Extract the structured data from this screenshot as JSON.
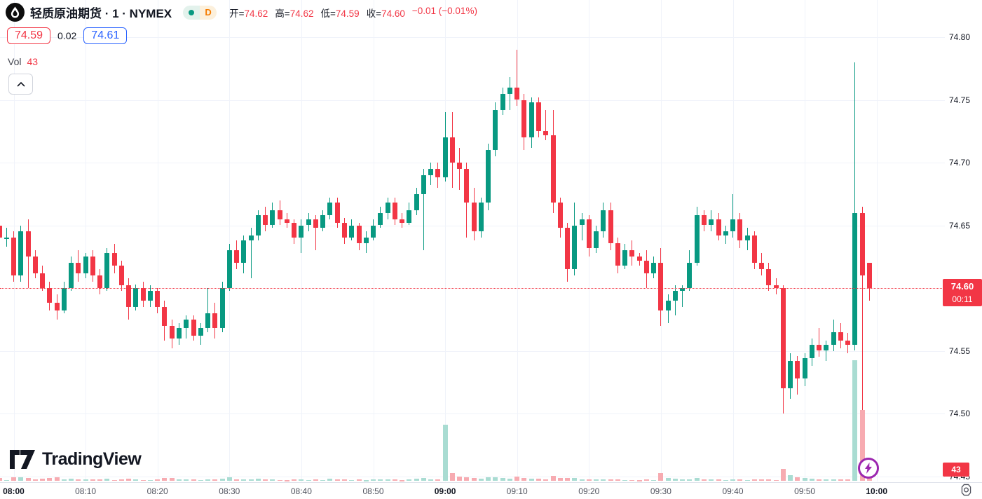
{
  "header": {
    "symbol_title": "轻质原油期货 · 1 · NYMEX",
    "interval_badge": "D",
    "ohlc": {
      "open_label": "开=",
      "open": "74.62",
      "high_label": "高=",
      "high": "74.62",
      "low_label": "低=",
      "low": "74.59",
      "close_label": "收=",
      "close": "74.60",
      "change": "−0.01 (−0.01%)"
    }
  },
  "quote_row": {
    "bid": "74.59",
    "spread": "0.02",
    "ask": "74.61"
  },
  "indicator_row": {
    "label": "Vol",
    "value": "43"
  },
  "watermark": {
    "brand": "TradingView"
  },
  "price_axis": {
    "labels": [
      "74.80",
      "74.75",
      "74.70",
      "74.65",
      "74.55",
      "74.50",
      "74.45"
    ],
    "last_price_tag": {
      "price": "74.60",
      "countdown": "00:11"
    },
    "volume_tag": "43"
  },
  "time_axis": {
    "labels": [
      {
        "text": "08:00",
        "emphasis": true
      },
      {
        "text": "08:10",
        "emphasis": false
      },
      {
        "text": "08:20",
        "emphasis": false
      },
      {
        "text": "08:30",
        "emphasis": false
      },
      {
        "text": "08:40",
        "emphasis": false
      },
      {
        "text": "08:50",
        "emphasis": false
      },
      {
        "text": "09:00",
        "emphasis": true
      },
      {
        "text": "09:10",
        "emphasis": false
      },
      {
        "text": "09:20",
        "emphasis": false
      },
      {
        "text": "09:30",
        "emphasis": false
      },
      {
        "text": "09:40",
        "emphasis": false
      },
      {
        "text": "09:50",
        "emphasis": false
      },
      {
        "text": "10:00",
        "emphasis": true
      }
    ]
  },
  "chart_data": {
    "type": "candlestick",
    "title": "轻质原油期货",
    "interval": "1",
    "exchange": "NYMEX",
    "ylim": [
      74.45,
      74.81
    ],
    "price_line": 74.6,
    "grid": true,
    "colors": {
      "up": "#089981",
      "down": "#f23645",
      "vol_up": "#a9dcd2",
      "vol_down": "#f7abb1",
      "grid": "#f0f3fa",
      "line": "#f23645"
    },
    "columns": [
      "time",
      "open",
      "high",
      "low",
      "close",
      "volume"
    ],
    "candles": [
      [
        "07:58",
        74.65,
        74.665,
        74.635,
        74.64,
        25
      ],
      [
        "07:59",
        74.64,
        74.648,
        74.633,
        74.64,
        10
      ],
      [
        "08:00",
        74.64,
        74.645,
        74.605,
        74.61,
        30
      ],
      [
        "08:01",
        74.61,
        74.65,
        74.605,
        74.645,
        28
      ],
      [
        "08:02",
        74.645,
        74.655,
        74.6,
        74.625,
        22
      ],
      [
        "08:03",
        74.625,
        74.63,
        74.608,
        74.612,
        15
      ],
      [
        "08:04",
        74.612,
        74.618,
        74.598,
        74.6,
        18
      ],
      [
        "08:05",
        74.6,
        74.605,
        74.582,
        74.588,
        24
      ],
      [
        "08:06",
        74.588,
        74.595,
        74.575,
        74.582,
        30
      ],
      [
        "08:07",
        74.582,
        74.605,
        74.58,
        74.6,
        16
      ],
      [
        "08:08",
        74.6,
        74.625,
        74.598,
        74.62,
        20
      ],
      [
        "08:09",
        74.62,
        74.63,
        74.605,
        74.612,
        12
      ],
      [
        "08:10",
        74.612,
        74.628,
        74.608,
        74.625,
        16
      ],
      [
        "08:11",
        74.625,
        74.63,
        74.605,
        74.61,
        14
      ],
      [
        "08:12",
        74.61,
        74.615,
        74.595,
        74.6,
        12
      ],
      [
        "08:13",
        74.6,
        74.632,
        74.598,
        74.628,
        18
      ],
      [
        "08:14",
        74.628,
        74.635,
        74.612,
        74.618,
        10
      ],
      [
        "08:15",
        74.618,
        74.622,
        74.598,
        74.602,
        14
      ],
      [
        "08:16",
        74.602,
        74.608,
        74.575,
        74.585,
        20
      ],
      [
        "08:17",
        74.585,
        74.603,
        74.582,
        74.6,
        12
      ],
      [
        "08:18",
        74.6,
        74.605,
        74.585,
        74.59,
        10
      ],
      [
        "08:19",
        74.59,
        74.602,
        74.585,
        74.598,
        9
      ],
      [
        "08:20",
        74.598,
        74.6,
        74.58,
        74.585,
        15
      ],
      [
        "08:21",
        74.585,
        74.59,
        74.558,
        74.57,
        22
      ],
      [
        "08:22",
        74.57,
        74.575,
        74.552,
        74.56,
        26
      ],
      [
        "08:23",
        74.56,
        74.572,
        74.555,
        74.568,
        14
      ],
      [
        "08:24",
        74.568,
        74.578,
        74.56,
        74.575,
        11
      ],
      [
        "08:25",
        74.575,
        74.578,
        74.558,
        74.562,
        12
      ],
      [
        "08:26",
        74.562,
        74.572,
        74.555,
        74.568,
        9
      ],
      [
        "08:27",
        74.568,
        74.6,
        74.565,
        74.58,
        16
      ],
      [
        "08:28",
        74.58,
        74.588,
        74.56,
        74.568,
        11
      ],
      [
        "08:29",
        74.568,
        74.605,
        74.565,
        74.6,
        18
      ],
      [
        "08:30",
        74.6,
        74.635,
        74.598,
        74.63,
        32
      ],
      [
        "08:31",
        74.63,
        74.638,
        74.615,
        74.62,
        14
      ],
      [
        "08:32",
        74.62,
        74.642,
        74.612,
        74.638,
        16
      ],
      [
        "08:33",
        74.638,
        74.648,
        74.608,
        74.642,
        12
      ],
      [
        "08:34",
        74.642,
        74.662,
        74.638,
        74.658,
        20
      ],
      [
        "08:35",
        74.658,
        74.665,
        74.645,
        74.65,
        11
      ],
      [
        "08:36",
        74.65,
        74.668,
        74.648,
        74.662,
        13
      ],
      [
        "08:37",
        74.662,
        74.67,
        74.65,
        74.655,
        10
      ],
      [
        "08:38",
        74.655,
        74.66,
        74.648,
        74.652,
        8
      ],
      [
        "08:39",
        74.652,
        74.655,
        74.635,
        74.64,
        12
      ],
      [
        "08:40",
        74.64,
        74.655,
        74.628,
        74.65,
        15
      ],
      [
        "08:41",
        74.65,
        74.66,
        74.645,
        74.655,
        9
      ],
      [
        "08:42",
        74.655,
        74.658,
        74.63,
        74.648,
        13
      ],
      [
        "08:43",
        74.648,
        74.662,
        74.645,
        74.658,
        10
      ],
      [
        "08:44",
        74.658,
        74.672,
        74.655,
        74.668,
        17
      ],
      [
        "08:45",
        74.668,
        74.672,
        74.648,
        74.652,
        12
      ],
      [
        "08:46",
        74.652,
        74.656,
        74.635,
        74.64,
        14
      ],
      [
        "08:47",
        74.64,
        74.655,
        74.638,
        74.65,
        9
      ],
      [
        "08:48",
        74.65,
        74.652,
        74.63,
        74.636,
        11
      ],
      [
        "08:49",
        74.636,
        74.645,
        74.628,
        74.64,
        8
      ],
      [
        "08:50",
        74.64,
        74.655,
        74.638,
        74.65,
        13
      ],
      [
        "08:51",
        74.65,
        74.665,
        74.648,
        74.66,
        15
      ],
      [
        "08:52",
        74.66,
        74.672,
        74.655,
        74.668,
        12
      ],
      [
        "08:53",
        74.668,
        74.672,
        74.65,
        74.655,
        11
      ],
      [
        "08:54",
        74.655,
        74.66,
        74.648,
        74.652,
        7
      ],
      [
        "08:55",
        74.652,
        74.668,
        74.65,
        74.662,
        12
      ],
      [
        "08:56",
        74.662,
        74.68,
        74.658,
        74.675,
        18
      ],
      [
        "08:57",
        74.675,
        74.695,
        74.63,
        74.69,
        22
      ],
      [
        "08:58",
        74.69,
        74.7,
        74.682,
        74.695,
        16
      ],
      [
        "08:59",
        74.695,
        74.7,
        74.68,
        74.688,
        14
      ],
      [
        "09:00",
        74.688,
        74.74,
        74.685,
        74.72,
        435
      ],
      [
        "09:01",
        74.72,
        74.74,
        74.68,
        74.7,
        60
      ],
      [
        "09:02",
        74.7,
        74.712,
        74.678,
        74.695,
        35
      ],
      [
        "09:03",
        74.695,
        74.7,
        74.64,
        74.668,
        30
      ],
      [
        "09:04",
        74.668,
        74.68,
        74.638,
        74.645,
        26
      ],
      [
        "09:05",
        74.645,
        74.672,
        74.64,
        74.668,
        20
      ],
      [
        "09:06",
        74.668,
        74.715,
        74.662,
        74.71,
        28
      ],
      [
        "09:07",
        74.71,
        74.748,
        74.705,
        74.742,
        32
      ],
      [
        "09:08",
        74.742,
        74.76,
        74.738,
        74.755,
        26
      ],
      [
        "09:09",
        74.755,
        74.768,
        74.742,
        74.76,
        18
      ],
      [
        "09:10",
        74.76,
        74.79,
        74.745,
        74.75,
        36
      ],
      [
        "09:11",
        74.75,
        74.755,
        74.71,
        74.72,
        24
      ],
      [
        "09:12",
        74.72,
        74.752,
        74.712,
        74.748,
        20
      ],
      [
        "09:13",
        74.748,
        74.752,
        74.72,
        74.725,
        17
      ],
      [
        "09:14",
        74.725,
        74.742,
        74.718,
        74.722,
        13
      ],
      [
        "09:15",
        74.722,
        74.742,
        74.66,
        74.668,
        40
      ],
      [
        "09:16",
        74.668,
        74.672,
        74.64,
        74.648,
        22
      ],
      [
        "09:17",
        74.648,
        74.652,
        74.605,
        74.615,
        26
      ],
      [
        "09:18",
        74.615,
        74.668,
        74.61,
        74.65,
        24
      ],
      [
        "09:19",
        74.65,
        74.66,
        74.638,
        74.655,
        14
      ],
      [
        "09:20",
        74.655,
        74.658,
        74.625,
        74.632,
        16
      ],
      [
        "09:21",
        74.632,
        74.65,
        74.628,
        74.645,
        12
      ],
      [
        "09:22",
        74.645,
        74.668,
        74.64,
        74.662,
        15
      ],
      [
        "09:23",
        74.662,
        74.668,
        74.63,
        74.636,
        13
      ],
      [
        "09:24",
        74.636,
        74.64,
        74.612,
        74.618,
        14
      ],
      [
        "09:25",
        74.618,
        74.635,
        74.615,
        74.63,
        10
      ],
      [
        "09:26",
        74.63,
        74.638,
        74.618,
        74.625,
        9
      ],
      [
        "09:27",
        74.625,
        74.628,
        74.618,
        74.622,
        8
      ],
      [
        "09:28",
        74.622,
        74.63,
        74.6,
        74.612,
        12
      ],
      [
        "09:29",
        74.612,
        74.625,
        74.608,
        74.62,
        10
      ],
      [
        "09:30",
        74.62,
        74.632,
        74.57,
        74.582,
        60
      ],
      [
        "09:31",
        74.582,
        74.595,
        74.572,
        74.59,
        25
      ],
      [
        "09:32",
        74.59,
        74.602,
        74.578,
        74.598,
        18
      ],
      [
        "09:33",
        74.598,
        74.602,
        74.585,
        74.6,
        12
      ],
      [
        "09:34",
        74.6,
        74.63,
        74.598,
        74.62,
        16
      ],
      [
        "09:35",
        74.62,
        74.665,
        74.618,
        74.658,
        22
      ],
      [
        "09:36",
        74.658,
        74.662,
        74.645,
        74.65,
        14
      ],
      [
        "09:37",
        74.65,
        74.662,
        74.645,
        74.655,
        11
      ],
      [
        "09:38",
        74.655,
        74.66,
        74.638,
        74.642,
        12
      ],
      [
        "09:39",
        74.642,
        74.65,
        74.635,
        74.645,
        9
      ],
      [
        "09:40",
        74.645,
        74.675,
        74.64,
        74.655,
        16
      ],
      [
        "09:41",
        74.655,
        74.66,
        74.632,
        74.638,
        13
      ],
      [
        "09:42",
        74.638,
        74.648,
        74.63,
        74.642,
        10
      ],
      [
        "09:43",
        74.642,
        74.645,
        74.615,
        74.62,
        14
      ],
      [
        "09:44",
        74.62,
        74.628,
        74.61,
        74.615,
        12
      ],
      [
        "09:45",
        74.615,
        74.62,
        74.598,
        74.602,
        15
      ],
      [
        "09:46",
        74.602,
        74.608,
        74.595,
        74.6,
        10
      ],
      [
        "09:47",
        74.6,
        74.602,
        74.5,
        74.52,
        95
      ],
      [
        "09:48",
        74.52,
        74.548,
        74.512,
        74.542,
        45
      ],
      [
        "09:49",
        74.542,
        74.546,
        74.515,
        74.528,
        28
      ],
      [
        "09:50",
        74.528,
        74.548,
        74.522,
        74.544,
        22
      ],
      [
        "09:51",
        74.544,
        74.56,
        74.538,
        74.555,
        18
      ],
      [
        "09:52",
        74.555,
        74.568,
        74.545,
        74.55,
        15
      ],
      [
        "09:53",
        74.55,
        74.558,
        74.542,
        74.555,
        12
      ],
      [
        "09:54",
        74.555,
        74.575,
        74.55,
        74.565,
        16
      ],
      [
        "09:55",
        74.565,
        74.572,
        74.552,
        74.558,
        14
      ],
      [
        "09:56",
        74.558,
        74.564,
        74.548,
        74.555,
        12
      ],
      [
        "09:57",
        74.555,
        74.78,
        74.55,
        74.66,
        930
      ],
      [
        "09:58",
        74.66,
        74.665,
        74.48,
        74.61,
        545
      ],
      [
        "09:59",
        74.62,
        74.62,
        74.59,
        74.6,
        43
      ]
    ]
  }
}
